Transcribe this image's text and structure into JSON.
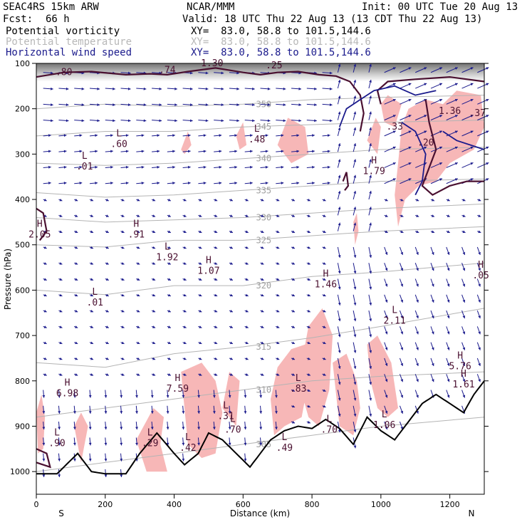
{
  "header": {
    "model": "SEAC4RS 15km ARW",
    "org": "NCAR/MMM",
    "init": "Init: 00 UTC Tue 20 Aug 13",
    "fcst_label": "Fcst:",
    "fcst_value": "66 h",
    "valid": "Valid: 18 UTC Thu 22 Aug 13 (13 CDT Thu 22 Aug 13)",
    "fields": [
      {
        "name": "Potential vorticity",
        "xy": "XY=  83.0, 58.8 to 101.5,144.6",
        "color": "#000000"
      },
      {
        "name": "Potential temperature",
        "xy": "XY=  83.0, 58.8 to 101.5,144.6",
        "color": "#b8b8b8"
      },
      {
        "name": "Horizontal wind speed",
        "xy": "XY=  83.0, 58.8 to 101.5,144.6",
        "color": "#1a1a8c"
      }
    ]
  },
  "chart_data": {
    "type": "cross-section",
    "xlabel": "Distance (km)",
    "ylabel": "Pressure (hPa)",
    "xlim": [
      0,
      1300
    ],
    "ylim": [
      1050,
      100
    ],
    "x_ticks": [
      "0",
      "200",
      "400",
      "600",
      "800",
      "1000",
      "1200"
    ],
    "y_ticks": [
      "100",
      "200",
      "300",
      "400",
      "500",
      "600",
      "700",
      "800",
      "900",
      "1000"
    ],
    "end_labels": {
      "left": "S",
      "right": "N"
    },
    "colors": {
      "pv_shading": "#f7b7b7",
      "theta": "#b4b4b4",
      "wind": "#1a1a8c",
      "terrain": "#000000",
      "pv_contour": "#4a1030"
    },
    "theta_contours": [
      {
        "label": "305",
        "points": [
          [
            0,
            1000
          ],
          [
            200,
            980
          ],
          [
            400,
            960
          ],
          [
            600,
            940
          ],
          [
            800,
            920
          ],
          [
            1000,
            900
          ],
          [
            1300,
            880
          ]
        ]
      },
      {
        "label": "310",
        "points": [
          [
            0,
            880
          ],
          [
            200,
            860
          ],
          [
            400,
            840
          ],
          [
            600,
            820
          ],
          [
            800,
            800
          ],
          [
            1000,
            790
          ],
          [
            1300,
            780
          ]
        ]
      },
      {
        "label": "315",
        "points": [
          [
            0,
            760
          ],
          [
            200,
            770
          ],
          [
            400,
            740
          ],
          [
            600,
            725
          ],
          [
            800,
            705
          ],
          [
            1000,
            680
          ],
          [
            1300,
            640
          ]
        ]
      },
      {
        "label": "320",
        "points": [
          [
            0,
            600
          ],
          [
            200,
            610
          ],
          [
            400,
            590
          ],
          [
            600,
            590
          ],
          [
            800,
            570
          ],
          [
            1000,
            560
          ],
          [
            1300,
            540
          ]
        ]
      },
      {
        "label": "325",
        "points": [
          [
            0,
            500
          ],
          [
            200,
            505
          ],
          [
            400,
            490
          ],
          [
            600,
            490
          ],
          [
            800,
            480
          ],
          [
            1000,
            470
          ],
          [
            1300,
            460
          ]
        ]
      },
      {
        "label": "330",
        "points": [
          [
            0,
            440
          ],
          [
            200,
            450
          ],
          [
            400,
            445
          ],
          [
            600,
            440
          ],
          [
            800,
            430
          ],
          [
            1000,
            420
          ],
          [
            1300,
            410
          ]
        ]
      },
      {
        "label": "335",
        "points": [
          [
            0,
            385
          ],
          [
            200,
            395
          ],
          [
            400,
            390
          ],
          [
            600,
            380
          ],
          [
            800,
            370
          ],
          [
            1000,
            360
          ],
          [
            1300,
            355
          ]
        ]
      },
      {
        "label": "340",
        "points": [
          [
            0,
            320
          ],
          [
            200,
            325
          ],
          [
            400,
            320
          ],
          [
            600,
            310
          ],
          [
            800,
            300
          ],
          [
            1000,
            290
          ],
          [
            1300,
            285
          ]
        ]
      },
      {
        "label": "345",
        "points": [
          [
            0,
            260
          ],
          [
            200,
            250
          ],
          [
            400,
            250
          ],
          [
            600,
            240
          ],
          [
            800,
            235
          ],
          [
            1000,
            230
          ],
          [
            1300,
            225
          ]
        ]
      },
      {
        "label": "350",
        "points": [
          [
            0,
            200
          ],
          [
            200,
            190
          ],
          [
            400,
            195
          ],
          [
            600,
            190
          ],
          [
            800,
            180
          ],
          [
            1000,
            175
          ],
          [
            1300,
            170
          ]
        ]
      }
    ],
    "extrema_labels": [
      {
        "type": "L",
        "value": ".01",
        "x": 140,
        "y": 320
      },
      {
        "type": "L",
        "value": ".60",
        "x": 240,
        "y": 270
      },
      {
        "type": "L",
        "value": ".48",
        "x": 640,
        "y": 260
      },
      {
        "type": "H",
        "value": "2.05",
        "x": 10,
        "y": 470
      },
      {
        "type": "H",
        "value": ".91",
        "x": 290,
        "y": 470
      },
      {
        "type": "L",
        "value": "1.92",
        "x": 380,
        "y": 520
      },
      {
        "type": "H",
        "value": "1.07",
        "x": 500,
        "y": 550
      },
      {
        "type": "L",
        "value": ".01",
        "x": 170,
        "y": 620
      },
      {
        "type": "H",
        "value": "1.79",
        "x": 980,
        "y": 330
      },
      {
        "type": "H",
        "value": "1.46",
        "x": 840,
        "y": 580
      },
      {
        "type": "L",
        "value": "2.11",
        "x": 1040,
        "y": 660
      },
      {
        "type": "H",
        "value": "6.98",
        "x": 90,
        "y": 820
      },
      {
        "type": "H",
        "value": "7.59",
        "x": 410,
        "y": 810
      },
      {
        "type": "L",
        "value": ".83",
        "x": 760,
        "y": 810
      },
      {
        "type": "H",
        "value": "5.76",
        "x": 1230,
        "y": 760
      },
      {
        "type": "H",
        "value": "1.61",
        "x": 1240,
        "y": 800
      },
      {
        "type": "L",
        "value": ".31",
        "x": 550,
        "y": 870
      },
      {
        "type": "L",
        "value": ".70",
        "x": 570,
        "y": 900
      },
      {
        "type": "L",
        "value": ".70",
        "x": 850,
        "y": 900
      },
      {
        "type": "L",
        "value": "1.06",
        "x": 1010,
        "y": 890
      },
      {
        "type": "L",
        "value": ".90",
        "x": 60,
        "y": 930
      },
      {
        "type": "L",
        "value": ".29",
        "x": 330,
        "y": 930
      },
      {
        "type": "L",
        "value": ".42",
        "x": 440,
        "y": 940
      },
      {
        "type": "L",
        "value": ".49",
        "x": 720,
        "y": 940
      },
      {
        "type": "H",
        "value": ".05",
        "x": 1290,
        "y": 560
      }
    ],
    "contour_labels": [
      {
        "value": ".80",
        "x": 80,
        "y": 120
      },
      {
        "value": ".74",
        "x": 380,
        "y": 115
      },
      {
        "value": "1.30",
        "x": 510,
        "y": 100
      },
      {
        "value": ".25",
        "x": 690,
        "y": 105
      },
      {
        "value": ".33",
        "x": 1040,
        "y": 240
      },
      {
        "value": "1.36",
        "x": 1200,
        "y": 205
      },
      {
        "value": ".37",
        "x": 1280,
        "y": 210
      },
      {
        "value": ".20",
        "x": 1130,
        "y": 275
      }
    ]
  }
}
